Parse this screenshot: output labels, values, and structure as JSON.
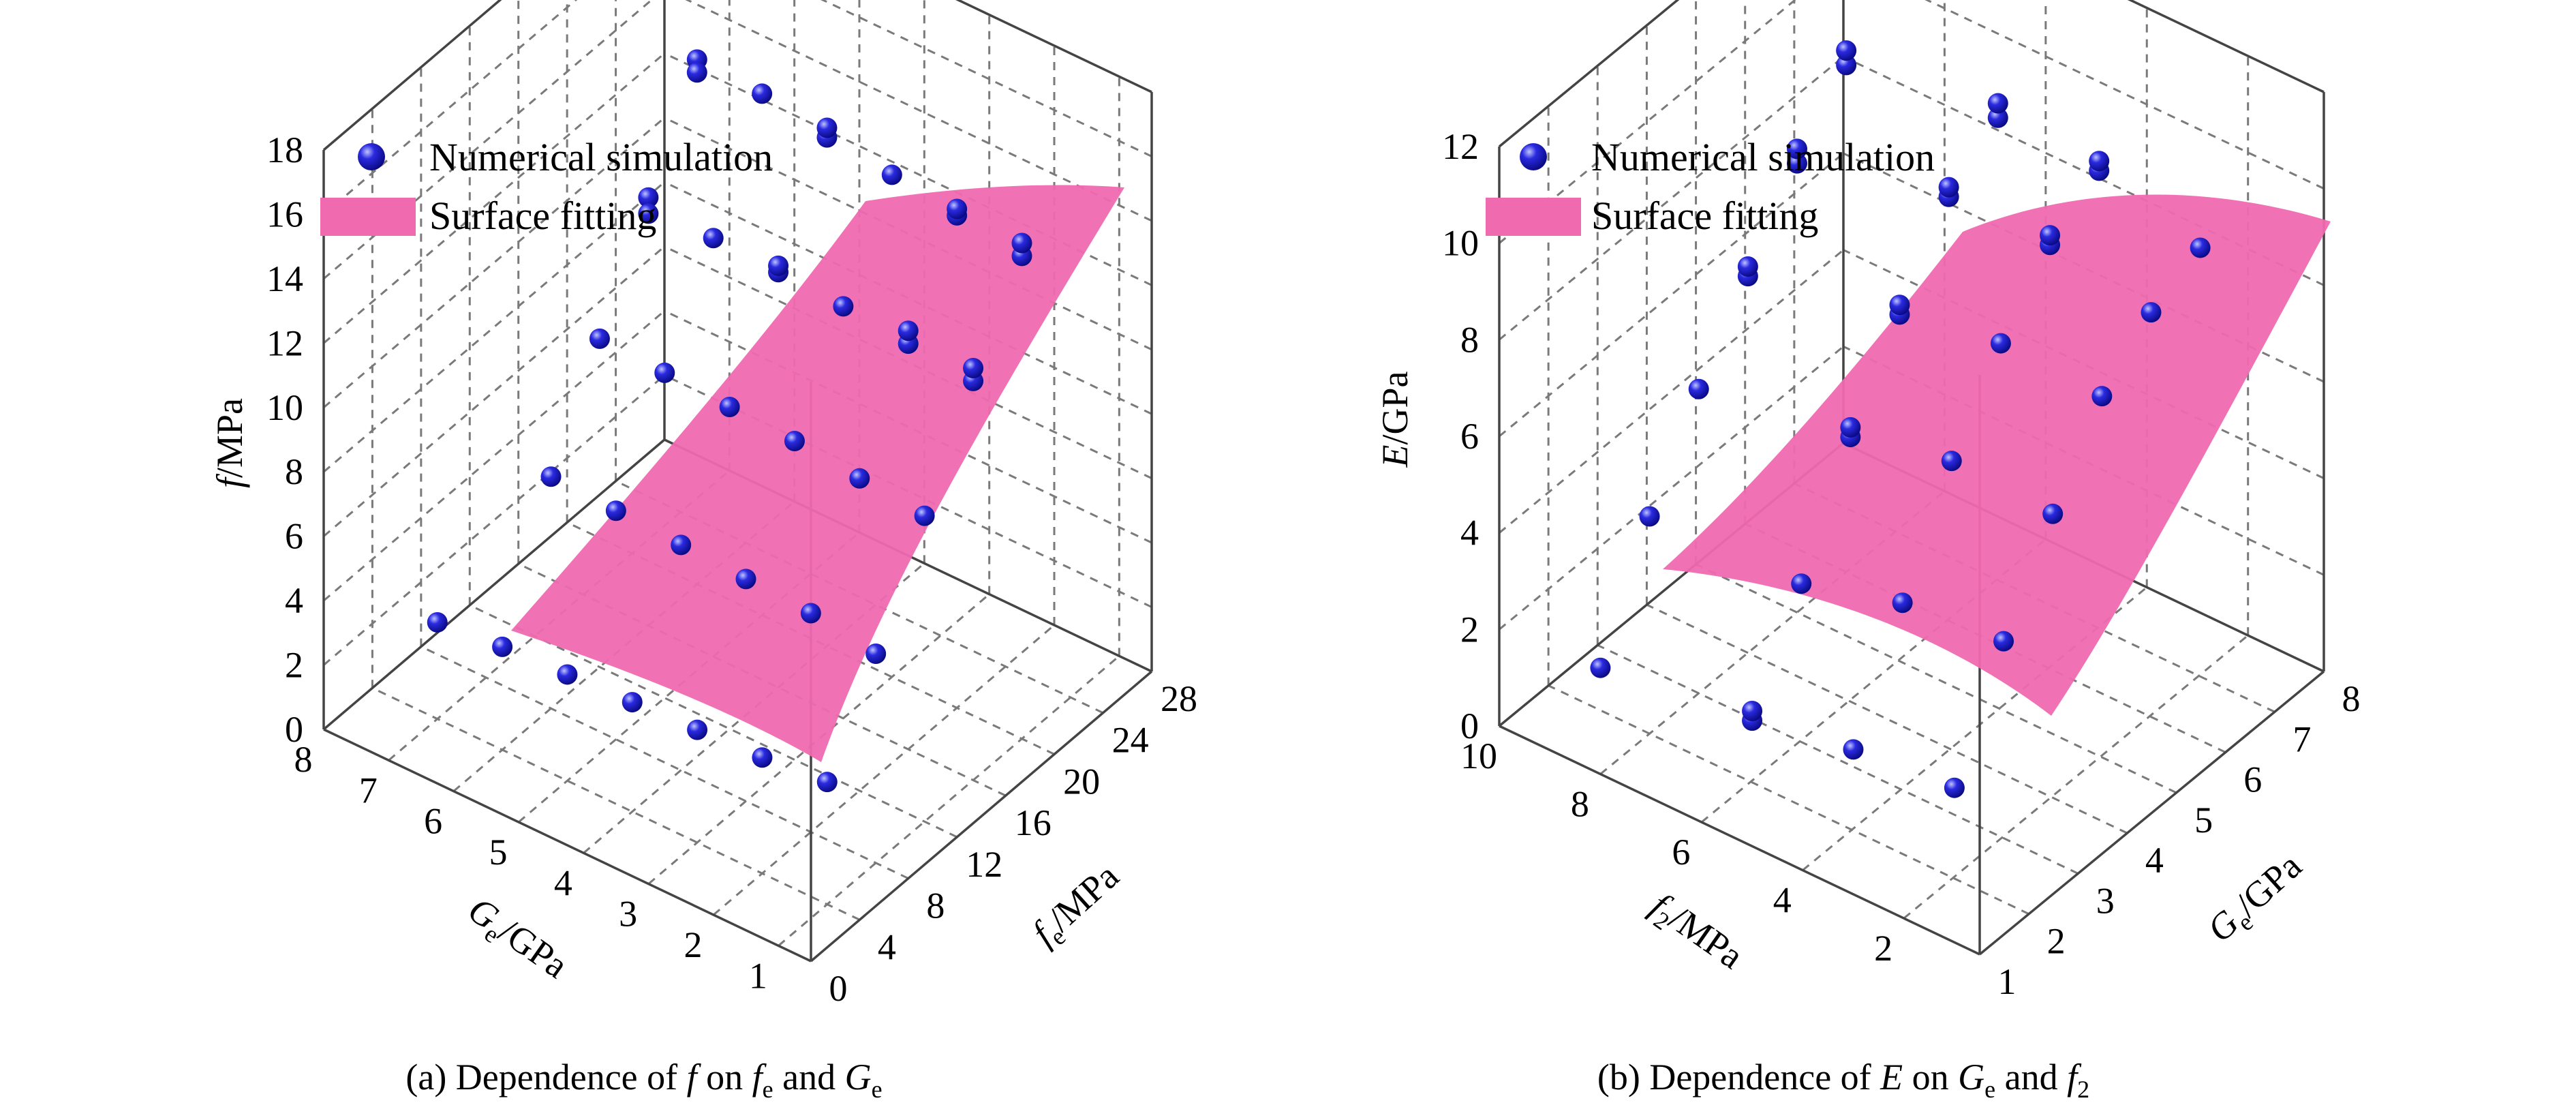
{
  "chart_data": [
    {
      "type": "scatter",
      "caption": [
        "(a) Dependence of ",
        "f",
        " on ",
        "f",
        "e",
        " and ",
        "G",
        "e"
      ],
      "zlabel": [
        "f",
        "/MPa"
      ],
      "xlabel": [
        "G",
        "e",
        "/GPa"
      ],
      "ylabel": [
        "f",
        "e",
        "/MPa"
      ],
      "x_ticks": [
        "1",
        "2",
        "3",
        "4",
        "5",
        "6",
        "7",
        "8"
      ],
      "y_ticks": [
        "0",
        "4",
        "8",
        "12",
        "16",
        "20",
        "24",
        "28"
      ],
      "z_ticks": [
        "0",
        "2",
        "4",
        "6",
        "8",
        "10",
        "12",
        "14",
        "16",
        "18"
      ],
      "xlim": [
        0.5,
        8
      ],
      "ylim": [
        0,
        28
      ],
      "zlim": [
        0,
        18
      ],
      "legend": {
        "points": "Numerical simulation",
        "surface": "Surface fitting",
        "placement": "top-left"
      },
      "marker_color": "#1f1fd8",
      "surface_color": "#f06ab0",
      "points": [
        [
          1,
          4,
          3.8
        ],
        [
          2,
          4,
          3.6
        ],
        [
          3,
          4,
          3.5
        ],
        [
          4,
          4,
          3.4
        ],
        [
          5,
          4,
          3.3
        ],
        [
          6,
          4,
          3.2
        ],
        [
          7,
          4,
          3.0
        ],
        [
          1,
          8,
          6.5
        ],
        [
          2,
          8,
          6.8
        ],
        [
          3,
          8,
          6.9
        ],
        [
          4,
          8,
          7.0
        ],
        [
          5,
          8,
          7.1
        ],
        [
          6,
          8,
          7.2
        ],
        [
          1,
          12,
          9.5
        ],
        [
          2,
          12,
          9.7
        ],
        [
          3,
          12,
          9.9
        ],
        [
          4,
          12,
          10.0
        ],
        [
          5,
          12,
          10.1
        ],
        [
          6,
          12,
          10.2
        ],
        [
          1,
          16,
          12.4
        ],
        [
          1,
          16,
          12.8
        ],
        [
          2,
          16,
          12.6
        ],
        [
          2,
          16,
          13.0
        ],
        [
          3,
          16,
          12.8
        ],
        [
          4,
          16,
          12.9
        ],
        [
          4,
          16,
          13.1
        ],
        [
          5,
          16,
          13.0
        ],
        [
          6,
          16,
          13.3
        ],
        [
          6,
          16,
          12.8
        ],
        [
          1,
          20,
          15.0
        ],
        [
          1,
          20,
          15.4
        ],
        [
          2,
          20,
          15.3
        ],
        [
          2,
          20,
          15.5
        ],
        [
          3,
          20,
          15.6
        ],
        [
          4,
          20,
          15.8
        ],
        [
          4,
          20,
          16.1
        ],
        [
          5,
          20,
          16.2
        ],
        [
          6,
          20,
          16.3
        ],
        [
          6,
          20,
          15.9
        ]
      ]
    },
    {
      "type": "scatter",
      "caption": [
        "(b) Dependence of ",
        "E",
        " on ",
        "G",
        "e",
        " and ",
        "f",
        "2"
      ],
      "zlabel": [
        "E",
        "/GPa"
      ],
      "xlabel": [
        "f",
        "2",
        "/MPa"
      ],
      "ylabel": [
        "G",
        "e",
        "/GPa"
      ],
      "x_ticks": [
        "2",
        "4",
        "6",
        "8",
        "10"
      ],
      "y_ticks": [
        "1",
        "2",
        "3",
        "4",
        "5",
        "6",
        "7",
        "8"
      ],
      "z_ticks": [
        "0",
        "2",
        "4",
        "6",
        "8",
        "10",
        "12"
      ],
      "xlim": [
        0.5,
        10
      ],
      "ylim": [
        1,
        8
      ],
      "zlim": [
        0,
        12
      ],
      "legend": {
        "points": "Numerical simulation",
        "surface": "Surface fitting",
        "placement": "top-left"
      },
      "marker_color": "#1f1fd8",
      "surface_color": "#f06ab0",
      "points": [
        [
          1,
          1,
          3.2
        ],
        [
          3,
          1,
          3.0
        ],
        [
          5,
          1,
          2.6
        ],
        [
          5,
          1,
          2.8
        ],
        [
          8,
          1,
          2.2
        ],
        [
          1,
          2,
          5.4
        ],
        [
          3,
          2,
          5.2
        ],
        [
          5,
          2,
          4.6
        ],
        [
          8,
          2,
          4.5
        ],
        [
          1,
          3,
          7.2
        ],
        [
          3,
          3,
          7.3
        ],
        [
          5,
          3,
          6.8
        ],
        [
          5,
          3,
          7.0
        ],
        [
          8,
          3,
          6.3
        ],
        [
          1,
          4,
          8.8
        ],
        [
          3,
          4,
          8.9
        ],
        [
          5,
          4,
          8.5
        ],
        [
          5,
          4,
          8.7
        ],
        [
          8,
          4,
          7.8
        ],
        [
          8,
          4,
          8.0
        ],
        [
          1,
          5,
          9.7
        ],
        [
          3,
          5,
          10.1
        ],
        [
          3,
          5,
          10.3
        ],
        [
          5,
          5,
          10.1
        ],
        [
          5,
          5,
          10.3
        ],
        [
          8,
          5,
          9.3
        ],
        [
          8,
          5,
          9.6
        ],
        [
          1,
          6,
          10.2
        ],
        [
          3,
          6,
          10.8
        ],
        [
          3,
          6,
          11.0
        ],
        [
          5,
          6,
          10.9
        ],
        [
          5,
          6,
          11.2
        ],
        [
          8,
          6,
          10.5
        ],
        [
          8,
          6,
          10.8
        ]
      ]
    }
  ]
}
